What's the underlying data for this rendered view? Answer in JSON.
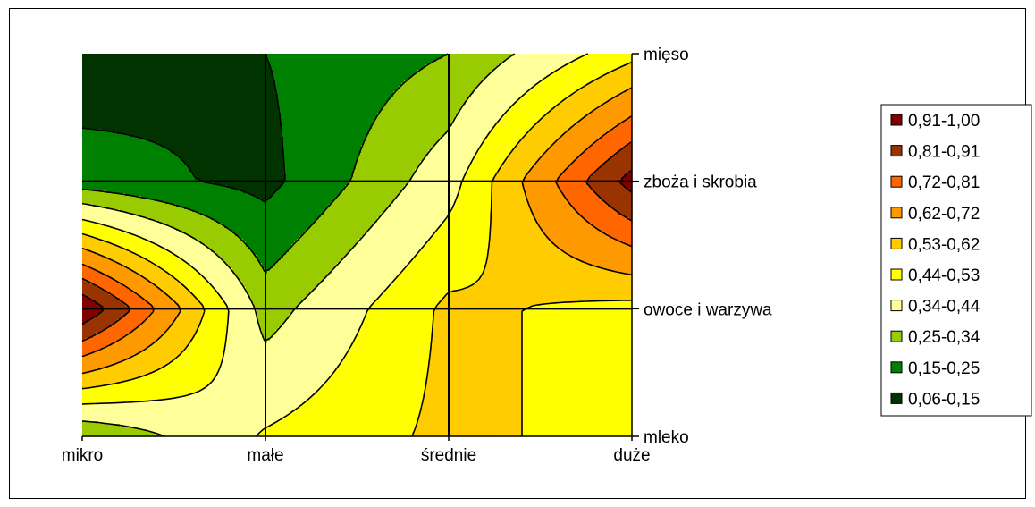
{
  "chart_data": {
    "type": "heatmap",
    "subtype": "contour",
    "title": "",
    "xlabel": "",
    "ylabel": "",
    "x_categories": [
      "mikro",
      "małe",
      "średnie",
      "duże"
    ],
    "y_categories": [
      "mleko",
      "owoce i warzywa",
      "zboża i skrobia",
      "mięso"
    ],
    "values": [
      [
        0.25,
        0.45,
        0.55,
        0.5
      ],
      [
        1.0,
        0.3,
        0.55,
        0.5
      ],
      [
        0.2,
        0.12,
        0.4,
        0.95
      ],
      [
        0.08,
        0.15,
        0.25,
        0.5
      ]
    ],
    "levels": [
      0.06,
      0.15,
      0.25,
      0.34,
      0.44,
      0.53,
      0.62,
      0.72,
      0.81,
      0.91,
      1.0
    ],
    "legend": {
      "position": "right",
      "entries": [
        {
          "label": "0,91-1,00",
          "color": "#800000"
        },
        {
          "label": "0,81-0,91",
          "color": "#993300"
        },
        {
          "label": "0,72-0,81",
          "color": "#ff6600"
        },
        {
          "label": "0,62-0,72",
          "color": "#ff9900"
        },
        {
          "label": "0,53-0,62",
          "color": "#ffcc00"
        },
        {
          "label": "0,44-0,53",
          "color": "#ffff00"
        },
        {
          "label": "0,34-0,44",
          "color": "#ffff99"
        },
        {
          "label": "0,25-0,34",
          "color": "#99cc00"
        },
        {
          "label": "0,15-0,25",
          "color": "#008000"
        },
        {
          "label": "0,06-0,15",
          "color": "#003300"
        }
      ]
    },
    "grid": true
  }
}
